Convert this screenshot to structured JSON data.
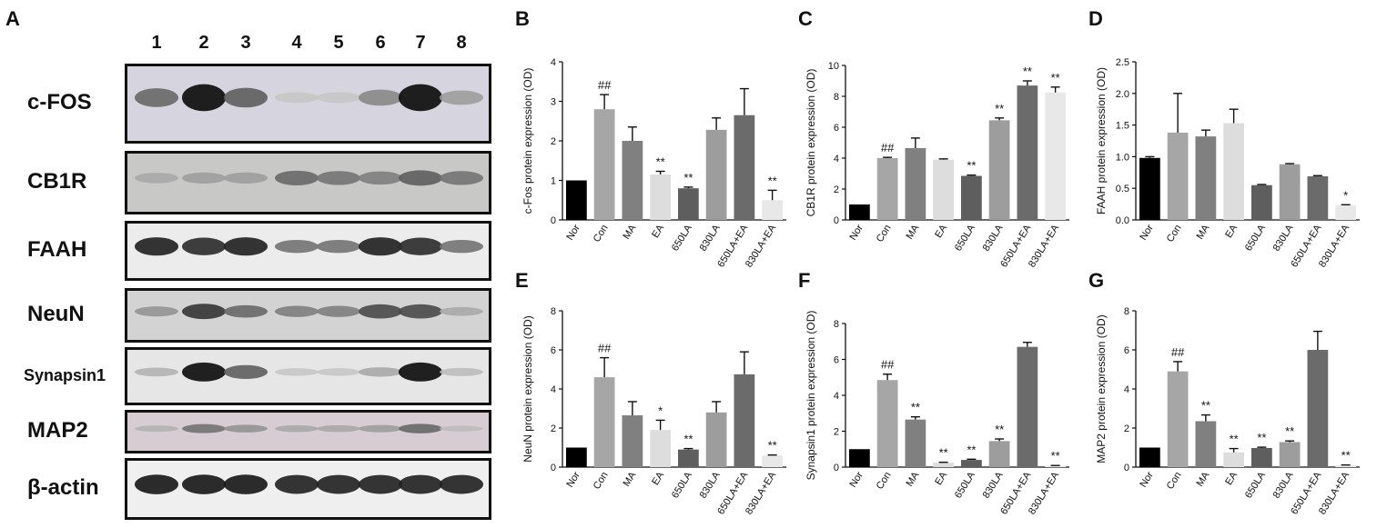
{
  "blot": {
    "letter": "A",
    "lanes": [
      "1",
      "2",
      "3",
      "4",
      "5",
      "6",
      "7",
      "8"
    ],
    "rows": [
      {
        "label": "c-FOS",
        "bg": "#d6d4de",
        "small": false
      },
      {
        "label": "CB1R",
        "bg": "#c8c9c6",
        "small": false
      },
      {
        "label": "FAAH",
        "bg": "#ececec",
        "small": false
      },
      {
        "label": "NeuN",
        "bg": "#d3d3d3",
        "small": false
      },
      {
        "label": "Synapsin1",
        "bg": "#e6e6e6",
        "small": true
      },
      {
        "label": "MAP2",
        "bg": "#d8ccd3",
        "small": false
      },
      {
        "label": "β-actin",
        "bg": "#efefef",
        "small": false
      }
    ]
  },
  "chart_data": [
    {
      "panel": "B",
      "type": "bar",
      "ylabel": "c-Fos protein expression (OD)",
      "ylim": [
        0,
        4
      ],
      "yticks": [
        "0",
        "1",
        "2",
        "3",
        "4"
      ],
      "categories": [
        "Nor",
        "Con",
        "MA",
        "EA",
        "650LA",
        "830LA",
        "650LA+EA",
        "830LA+EA"
      ],
      "values": [
        1.0,
        2.8,
        2.0,
        1.15,
        0.8,
        2.28,
        2.65,
        0.5
      ],
      "errors": [
        0.0,
        0.37,
        0.35,
        0.08,
        0.03,
        0.3,
        0.67,
        0.25
      ],
      "annotations": [
        "",
        "##",
        "",
        "**",
        "**",
        "",
        "",
        "**"
      ]
    },
    {
      "panel": "C",
      "type": "bar",
      "ylabel": "CB1R protein expression (OD)",
      "ylim": [
        0,
        10
      ],
      "yticks": [
        "0",
        "2",
        "4",
        "6",
        "8",
        "10"
      ],
      "categories": [
        "Nor",
        "Con",
        "MA",
        "EA",
        "650LA",
        "830LA",
        "650LA+EA",
        "830LA+EA"
      ],
      "values": [
        1.0,
        4.0,
        4.65,
        3.9,
        2.85,
        6.45,
        8.7,
        8.25
      ],
      "errors": [
        0.0,
        0.05,
        0.65,
        0.05,
        0.05,
        0.15,
        0.3,
        0.35
      ],
      "annotations": [
        "",
        "##",
        "",
        "",
        "**",
        "**",
        "**",
        "**"
      ]
    },
    {
      "panel": "D",
      "type": "bar",
      "ylabel": "FAAH protein expression (OD)",
      "ylim": [
        0,
        2.5
      ],
      "yticks": [
        "0.0",
        "0.5",
        "1.0",
        "1.5",
        "2.0",
        "2.5"
      ],
      "categories": [
        "Nor",
        "Con",
        "MA",
        "EA",
        "650LA",
        "830LA",
        "650LA+EA",
        "830LA+EA"
      ],
      "values": [
        0.98,
        1.38,
        1.32,
        1.53,
        0.55,
        0.88,
        0.69,
        0.23
      ],
      "errors": [
        0.02,
        0.62,
        0.1,
        0.22,
        0.01,
        0.01,
        0.01,
        0.01
      ],
      "annotations": [
        "",
        "",
        "",
        "",
        "",
        "",
        "",
        "*"
      ]
    },
    {
      "panel": "E",
      "type": "bar",
      "ylabel": "NeuN protein expression (OD)",
      "ylim": [
        0,
        8
      ],
      "yticks": [
        "0",
        "2",
        "4",
        "6",
        "8"
      ],
      "categories": [
        "Nor",
        "Con",
        "MA",
        "EA",
        "650LA",
        "830LA",
        "650LA+EA",
        "830LA+EA"
      ],
      "values": [
        1.0,
        4.6,
        2.65,
        1.9,
        0.9,
        2.8,
        4.75,
        0.6
      ],
      "errors": [
        0.0,
        1.0,
        0.7,
        0.5,
        0.05,
        0.55,
        1.15,
        0.02
      ],
      "annotations": [
        "",
        "##",
        "",
        "*",
        "**",
        "",
        "",
        "**"
      ]
    },
    {
      "panel": "F",
      "type": "bar",
      "ylabel": "Synapsin1 protein expression (OD)",
      "ylim": [
        0,
        8
      ],
      "yticks": [
        "0",
        "2",
        "4",
        "6",
        "8"
      ],
      "categories": [
        "Nor",
        "Con",
        "MA",
        "EA",
        "650LA",
        "830LA",
        "650LA+EA",
        "830LA+EA"
      ],
      "values": [
        1.0,
        4.85,
        2.65,
        0.25,
        0.4,
        1.45,
        6.7,
        0.08
      ],
      "errors": [
        0.0,
        0.33,
        0.15,
        0.02,
        0.04,
        0.12,
        0.25,
        0.01
      ],
      "annotations": [
        "",
        "##",
        "**",
        "**",
        "**",
        "**",
        "",
        "**"
      ]
    },
    {
      "panel": "G",
      "type": "bar",
      "ylabel": "MAP2 protein expression (OD)",
      "ylim": [
        0,
        8
      ],
      "yticks": [
        "0",
        "2",
        "4",
        "6",
        "8"
      ],
      "categories": [
        "Nor",
        "Con",
        "MA",
        "EA",
        "650LA",
        "830LA",
        "650LA+EA",
        "830LA+EA"
      ],
      "values": [
        1.0,
        4.9,
        2.35,
        0.75,
        0.98,
        1.28,
        6.0,
        0.1
      ],
      "errors": [
        0.0,
        0.5,
        0.32,
        0.2,
        0.04,
        0.06,
        0.95,
        0.01
      ],
      "annotations": [
        "",
        "##",
        "**",
        "**",
        "**",
        "**",
        "",
        "**"
      ]
    }
  ],
  "colors": {
    "Nor": "#000000",
    "Con": "#a6a6a6",
    "MA": "#808080",
    "EA": "#dddddd",
    "650LA": "#5e5e5e",
    "830LA": "#9d9d9d",
    "650LA+EA": "#6b6b6b",
    "830LA+EA": "#e8e8e8"
  }
}
